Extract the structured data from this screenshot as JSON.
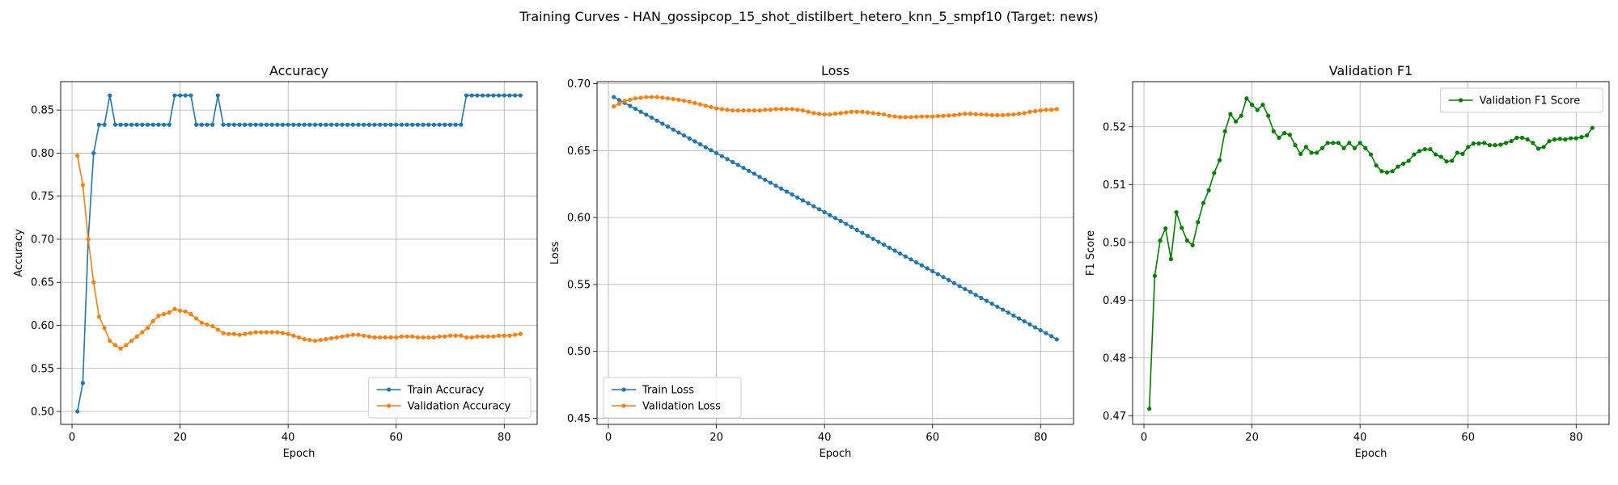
{
  "figure": {
    "suptitle": "Training Curves - HAN_gossipcop_15_shot_distilbert_hetero_knn_5_smpf10 (Target: news)"
  },
  "chart_data": [
    {
      "type": "line",
      "title": "Accuracy",
      "xlabel": "Epoch",
      "ylabel": "Accuracy",
      "xlim": [
        -2.1,
        86.1
      ],
      "ylim": [
        0.485,
        0.883
      ],
      "xticks": [
        0,
        20,
        40,
        60,
        80
      ],
      "yticks": [
        0.5,
        0.55,
        0.6,
        0.65,
        0.7,
        0.75,
        0.8,
        0.85
      ],
      "ytick_decimals": 2,
      "grid": true,
      "legend_position": "lower-right",
      "x": [
        1,
        2,
        3,
        4,
        5,
        6,
        7,
        8,
        9,
        10,
        11,
        12,
        13,
        14,
        15,
        16,
        17,
        18,
        19,
        20,
        21,
        22,
        23,
        24,
        25,
        26,
        27,
        28,
        29,
        30,
        31,
        32,
        33,
        34,
        35,
        36,
        37,
        38,
        39,
        40,
        41,
        42,
        43,
        44,
        45,
        46,
        47,
        48,
        49,
        50,
        51,
        52,
        53,
        54,
        55,
        56,
        57,
        58,
        59,
        60,
        61,
        62,
        63,
        64,
        65,
        66,
        67,
        68,
        69,
        70,
        71,
        72,
        73,
        74,
        75,
        76,
        77,
        78,
        79,
        80,
        81,
        82,
        83
      ],
      "series": [
        {
          "name": "Train Accuracy",
          "color": "#1f77b4",
          "values": [
            0.5,
            0.533,
            0.7,
            0.8,
            0.833,
            0.833,
            0.867,
            0.833,
            0.833,
            0.833,
            0.833,
            0.833,
            0.833,
            0.833,
            0.833,
            0.833,
            0.833,
            0.833,
            0.867,
            0.867,
            0.867,
            0.867,
            0.833,
            0.833,
            0.833,
            0.833,
            0.867,
            0.833,
            0.833,
            0.833,
            0.833,
            0.833,
            0.833,
            0.833,
            0.833,
            0.833,
            0.833,
            0.833,
            0.833,
            0.833,
            0.833,
            0.833,
            0.833,
            0.833,
            0.833,
            0.833,
            0.833,
            0.833,
            0.833,
            0.833,
            0.833,
            0.833,
            0.833,
            0.833,
            0.833,
            0.833,
            0.833,
            0.833,
            0.833,
            0.833,
            0.833,
            0.833,
            0.833,
            0.833,
            0.833,
            0.833,
            0.833,
            0.833,
            0.833,
            0.833,
            0.833,
            0.833,
            0.867,
            0.867,
            0.867,
            0.867,
            0.867,
            0.867,
            0.867,
            0.867,
            0.867,
            0.867,
            0.867
          ]
        },
        {
          "name": "Validation Accuracy",
          "color": "#ff7f0e",
          "values": [
            0.797,
            0.763,
            0.7,
            0.65,
            0.61,
            0.597,
            0.582,
            0.577,
            0.573,
            0.577,
            0.582,
            0.587,
            0.592,
            0.597,
            0.605,
            0.611,
            0.613,
            0.615,
            0.619,
            0.617,
            0.616,
            0.613,
            0.608,
            0.603,
            0.601,
            0.599,
            0.595,
            0.591,
            0.59,
            0.59,
            0.589,
            0.59,
            0.591,
            0.592,
            0.592,
            0.592,
            0.592,
            0.592,
            0.591,
            0.59,
            0.588,
            0.586,
            0.584,
            0.583,
            0.582,
            0.583,
            0.584,
            0.585,
            0.586,
            0.587,
            0.588,
            0.589,
            0.589,
            0.588,
            0.587,
            0.586,
            0.586,
            0.586,
            0.586,
            0.586,
            0.587,
            0.587,
            0.587,
            0.586,
            0.586,
            0.586,
            0.586,
            0.587,
            0.587,
            0.588,
            0.588,
            0.588,
            0.586,
            0.586,
            0.587,
            0.587,
            0.587,
            0.587,
            0.588,
            0.588,
            0.588,
            0.589,
            0.59
          ]
        }
      ]
    },
    {
      "type": "line",
      "title": "Loss",
      "xlabel": "Epoch",
      "ylabel": "Loss",
      "xlim": [
        -2.1,
        86.1
      ],
      "ylim": [
        0.4455,
        0.7015
      ],
      "xticks": [
        0,
        20,
        40,
        60,
        80
      ],
      "yticks": [
        0.45,
        0.5,
        0.55,
        0.6,
        0.65,
        0.7
      ],
      "ytick_decimals": 2,
      "grid": true,
      "legend_position": "lower-left",
      "x": [
        1,
        2,
        3,
        4,
        5,
        6,
        7,
        8,
        9,
        10,
        11,
        12,
        13,
        14,
        15,
        16,
        17,
        18,
        19,
        20,
        21,
        22,
        23,
        24,
        25,
        26,
        27,
        28,
        29,
        30,
        31,
        32,
        33,
        34,
        35,
        36,
        37,
        38,
        39,
        40,
        41,
        42,
        43,
        44,
        45,
        46,
        47,
        48,
        49,
        50,
        51,
        52,
        53,
        54,
        55,
        56,
        57,
        58,
        59,
        60,
        61,
        62,
        63,
        64,
        65,
        66,
        67,
        68,
        69,
        70,
        71,
        72,
        73,
        74,
        75,
        76,
        77,
        78,
        79,
        80,
        81,
        82,
        83
      ],
      "series": [
        {
          "name": "Train Loss",
          "color": "#1f77b4",
          "values": [
            0.69,
            0.6878,
            0.6856,
            0.6834,
            0.6812,
            0.679,
            0.6768,
            0.6746,
            0.6724,
            0.6701,
            0.6679,
            0.6657,
            0.6635,
            0.6613,
            0.6591,
            0.6569,
            0.6547,
            0.6525,
            0.6503,
            0.6481,
            0.6459,
            0.6437,
            0.6415,
            0.6393,
            0.6371,
            0.6349,
            0.6327,
            0.6304,
            0.6282,
            0.626,
            0.6238,
            0.6216,
            0.6194,
            0.6172,
            0.615,
            0.6128,
            0.6106,
            0.6084,
            0.6062,
            0.604,
            0.6018,
            0.5996,
            0.5974,
            0.5952,
            0.593,
            0.5907,
            0.5885,
            0.5863,
            0.5841,
            0.5819,
            0.5797,
            0.5775,
            0.5753,
            0.5731,
            0.5709,
            0.5687,
            0.5665,
            0.5643,
            0.5621,
            0.5599,
            0.5577,
            0.5555,
            0.5533,
            0.551,
            0.5488,
            0.5466,
            0.5444,
            0.5422,
            0.54,
            0.5378,
            0.5356,
            0.5334,
            0.5312,
            0.529,
            0.5268,
            0.5246,
            0.5224,
            0.5202,
            0.518,
            0.5158,
            0.5136,
            0.5114,
            0.509
          ]
        },
        {
          "name": "Validation Loss",
          "color": "#ff7f0e",
          "values": [
            0.683,
            0.685,
            0.687,
            0.688,
            0.689,
            0.6895,
            0.69,
            0.69,
            0.69,
            0.6895,
            0.689,
            0.6885,
            0.688,
            0.6872,
            0.6865,
            0.6855,
            0.6845,
            0.6835,
            0.6825,
            0.6815,
            0.681,
            0.6805,
            0.68,
            0.68,
            0.68,
            0.68,
            0.68,
            0.68,
            0.6805,
            0.6805,
            0.681,
            0.681,
            0.681,
            0.681,
            0.6805,
            0.68,
            0.679,
            0.678,
            0.6775,
            0.677,
            0.677,
            0.6775,
            0.678,
            0.6785,
            0.679,
            0.679,
            0.679,
            0.6785,
            0.678,
            0.6775,
            0.677,
            0.676,
            0.6755,
            0.675,
            0.675,
            0.675,
            0.6752,
            0.6755,
            0.6755,
            0.6755,
            0.6758,
            0.676,
            0.6762,
            0.6765,
            0.677,
            0.6775,
            0.6775,
            0.6772,
            0.677,
            0.6768,
            0.6765,
            0.6765,
            0.6765,
            0.6768,
            0.677,
            0.6775,
            0.678,
            0.679,
            0.6795,
            0.68,
            0.6805,
            0.6805,
            0.681
          ]
        }
      ]
    },
    {
      "type": "line",
      "title": "Validation F1",
      "xlabel": "Epoch",
      "ylabel": "F1 Score",
      "xlim": [
        -2.1,
        86.1
      ],
      "ylim": [
        0.4685,
        0.5278
      ],
      "xticks": [
        0,
        20,
        40,
        60,
        80
      ],
      "yticks": [
        0.47,
        0.48,
        0.49,
        0.5,
        0.51,
        0.52
      ],
      "ytick_decimals": 2,
      "grid": true,
      "legend_position": "top-right",
      "x": [
        1,
        2,
        3,
        4,
        5,
        6,
        7,
        8,
        9,
        10,
        11,
        12,
        13,
        14,
        15,
        16,
        17,
        18,
        19,
        20,
        21,
        22,
        23,
        24,
        25,
        26,
        27,
        28,
        29,
        30,
        31,
        32,
        33,
        34,
        35,
        36,
        37,
        38,
        39,
        40,
        41,
        42,
        43,
        44,
        45,
        46,
        47,
        48,
        49,
        50,
        51,
        52,
        53,
        54,
        55,
        56,
        57,
        58,
        59,
        60,
        61,
        62,
        63,
        64,
        65,
        66,
        67,
        68,
        69,
        70,
        71,
        72,
        73,
        74,
        75,
        76,
        77,
        78,
        79,
        80,
        81,
        82,
        83
      ],
      "series": [
        {
          "name": "Validation F1 Score",
          "color": "#008000",
          "values": [
            0.4712,
            0.4942,
            0.5003,
            0.5024,
            0.4971,
            0.5052,
            0.5025,
            0.5003,
            0.4995,
            0.5035,
            0.5068,
            0.509,
            0.512,
            0.5142,
            0.5192,
            0.5222,
            0.5209,
            0.5219,
            0.5249,
            0.5238,
            0.5229,
            0.5238,
            0.5219,
            0.5192,
            0.5181,
            0.5189,
            0.5186,
            0.5168,
            0.5153,
            0.5165,
            0.5155,
            0.5155,
            0.5163,
            0.5172,
            0.5172,
            0.5172,
            0.5163,
            0.5172,
            0.5163,
            0.5172,
            0.5163,
            0.5152,
            0.5133,
            0.5123,
            0.5121,
            0.5123,
            0.5131,
            0.5136,
            0.5141,
            0.5152,
            0.5158,
            0.5161,
            0.5161,
            0.5152,
            0.5148,
            0.514,
            0.5141,
            0.5155,
            0.5153,
            0.5165,
            0.5171,
            0.5171,
            0.5172,
            0.5168,
            0.5168,
            0.5169,
            0.5172,
            0.5175,
            0.5181,
            0.5181,
            0.5178,
            0.5172,
            0.5162,
            0.5165,
            0.5175,
            0.5178,
            0.5179,
            0.5178,
            0.518,
            0.518,
            0.5182,
            0.5185,
            0.5198
          ]
        }
      ]
    }
  ]
}
